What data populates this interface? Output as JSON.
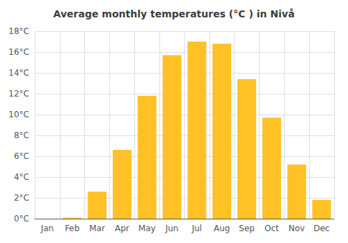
{
  "chart_data": {
    "type": "bar",
    "title": "Average monthly temperatures (°C ) in Nivå",
    "categories": [
      "Jan",
      "Feb",
      "Mar",
      "Apr",
      "May",
      "Jun",
      "Jul",
      "Aug",
      "Sep",
      "Oct",
      "Nov",
      "Dec"
    ],
    "values": [
      0.0,
      0.1,
      2.6,
      6.6,
      11.8,
      15.7,
      17.0,
      16.8,
      13.4,
      9.7,
      5.2,
      1.8
    ],
    "color": "#FFC125",
    "ylim": [
      0,
      18
    ],
    "yticks": [
      {
        "value": 0,
        "label": "0°C"
      },
      {
        "value": 2,
        "label": "2°C"
      },
      {
        "value": 4,
        "label": "4°C"
      },
      {
        "value": 6,
        "label": "6°C"
      },
      {
        "value": 8,
        "label": "8°C"
      },
      {
        "value": 10,
        "label": "10°C"
      },
      {
        "value": 12,
        "label": "12°C"
      },
      {
        "value": 14,
        "label": "14°C"
      },
      {
        "value": 16,
        "label": "16°C"
      },
      {
        "value": 18,
        "label": "18°C"
      }
    ],
    "grid": true
  }
}
